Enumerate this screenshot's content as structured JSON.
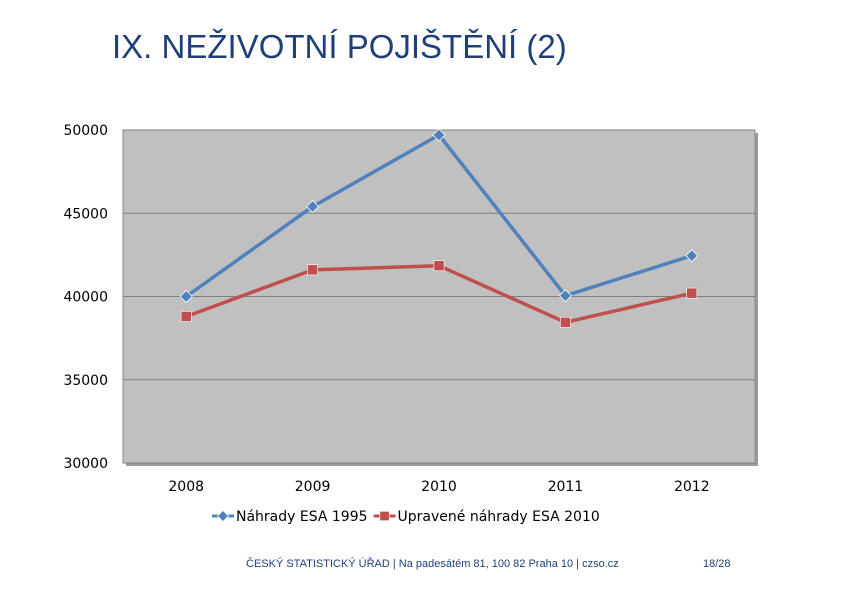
{
  "slide": {
    "title": "IX. NEŽIVOTNÍ POJIŠTĚNÍ (2)",
    "footer": "ČESKÝ STATISTICKÝ ÚŘAD | Na padesátém 81, 100 82 Praha 10 | czso.cz",
    "page": "18/28"
  },
  "chart_data": {
    "type": "line",
    "x": [
      "2008",
      "2009",
      "2010",
      "2011",
      "2012"
    ],
    "series": [
      {
        "name": "Náhrady ESA 1995",
        "values": [
          40000,
          45400,
          49700,
          40050,
          42450
        ],
        "color": "#4f81bd",
        "marker": "diamond"
      },
      {
        "name": "Upravené náhrady ESA 2010",
        "values": [
          38800,
          41600,
          41850,
          38450,
          40200
        ],
        "color": "#c0504d",
        "marker": "square"
      }
    ],
    "ylim": [
      30000,
      50000
    ],
    "yticks": [
      "50000",
      "45000",
      "40000",
      "35000",
      "30000"
    ],
    "grid": true,
    "plot_background": "#c0c0c0",
    "legend": "bottom"
  }
}
